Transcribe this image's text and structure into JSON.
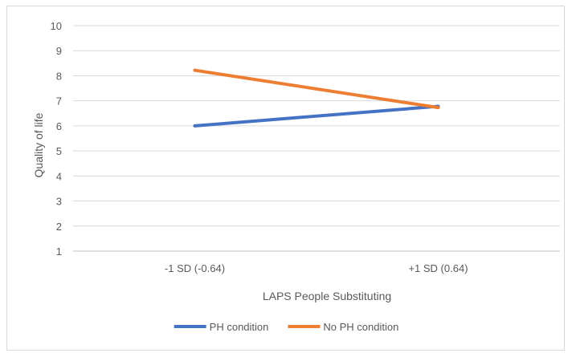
{
  "chart_data": {
    "type": "line",
    "title": "",
    "xlabel": "LAPS People Substituting",
    "ylabel": "Quality of life",
    "categories": [
      "-1 SD (-0.64)",
      "+1 SD (0.64)"
    ],
    "ylim": [
      1,
      10
    ],
    "yticks": [
      1,
      2,
      3,
      4,
      5,
      6,
      7,
      8,
      9,
      10
    ],
    "grid": true,
    "legend_position": "bottom",
    "series": [
      {
        "name": "PH condition",
        "values": [
          6.0,
          6.78
        ],
        "color": "#4472C4"
      },
      {
        "name": "No PH condition",
        "values": [
          8.22,
          6.73
        ],
        "color": "#ED7D31"
      }
    ]
  }
}
